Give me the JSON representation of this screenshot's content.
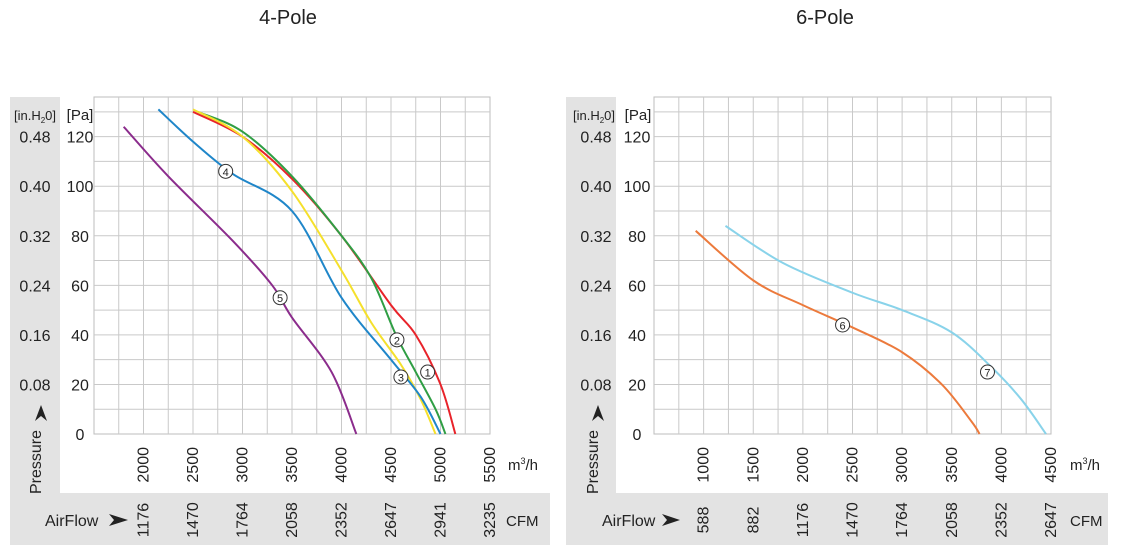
{
  "chart_data": [
    {
      "type": "line",
      "title": "4-Pole",
      "y_unit_left": "[in.H2O]",
      "y_unit_right": "[Pa]",
      "y_axis_label": "Pressure",
      "x_unit": "m³/h",
      "cfm_label": "AirFlow",
      "cfm_unit": "CFM",
      "xlim": [
        1500,
        5500
      ],
      "ylim": [
        0,
        136
      ],
      "x_ticks": [
        "2000",
        "2500",
        "3000",
        "3500",
        "4000",
        "4500",
        "5000",
        "5500"
      ],
      "x_tick_values": [
        2000,
        2500,
        3000,
        3500,
        4000,
        4500,
        5000,
        5500
      ],
      "cfm_ticks": [
        "1176",
        "1470",
        "1764",
        "2058",
        "2352",
        "2647",
        "2941",
        "3235"
      ],
      "y_ticks_pa": [
        "0",
        "20",
        "40",
        "60",
        "80",
        "100",
        "120"
      ],
      "y_tick_values": [
        0,
        20,
        40,
        60,
        80,
        100,
        120
      ],
      "y_ticks_inh2o": [
        "",
        "0.08",
        "0.16",
        "0.24",
        "0.32",
        "0.40",
        "0.48"
      ],
      "grid": true,
      "series": [
        {
          "name": "1",
          "color": "#e8232a",
          "x": [
            2500,
            3000,
            3500,
            4000,
            4500,
            4750,
            5000,
            5150
          ],
          "y": [
            130,
            120,
            103,
            80,
            52,
            40,
            20,
            0
          ]
        },
        {
          "name": "2",
          "color": "#2f9e44",
          "x": [
            2550,
            3000,
            3500,
            4000,
            4300,
            4550,
            4750,
            4950,
            5050
          ],
          "y": [
            130,
            122,
            104,
            80,
            63,
            40,
            25,
            10,
            0
          ]
        },
        {
          "name": "3",
          "color": "#f5e02c",
          "x": [
            2500,
            3000,
            3500,
            4000,
            4300,
            4600,
            4800,
            4950
          ],
          "y": [
            131,
            120,
            98,
            66,
            45,
            28,
            14,
            0
          ]
        },
        {
          "name": "4",
          "color": "#1f86c9",
          "x": [
            2150,
            2500,
            2900,
            3500,
            4000,
            4500,
            4800,
            5000
          ],
          "y": [
            131,
            118,
            105,
            90,
            55,
            30,
            15,
            0
          ]
        },
        {
          "name": "5",
          "color": "#8b2c8c",
          "x": [
            1800,
            2250,
            2900,
            3300,
            3500,
            3900,
            4150
          ],
          "y": [
            124,
            104,
            78,
            60,
            47,
            25,
            0
          ]
        }
      ],
      "labels": [
        {
          "text": "1",
          "x": 4870,
          "y": 25
        },
        {
          "text": "2",
          "x": 4560,
          "y": 38
        },
        {
          "text": "3",
          "x": 4600,
          "y": 23
        },
        {
          "text": "4",
          "x": 2830,
          "y": 106
        },
        {
          "text": "5",
          "x": 3380,
          "y": 55
        }
      ]
    },
    {
      "type": "line",
      "title": "6-Pole",
      "y_unit_left": "[in.H2O]",
      "y_unit_right": "[Pa]",
      "y_axis_label": "Pressure",
      "x_unit": "m³/h",
      "cfm_label": "AirFlow",
      "cfm_unit": "CFM",
      "xlim": [
        500,
        4500
      ],
      "ylim": [
        0,
        136
      ],
      "x_ticks": [
        "1000",
        "1500",
        "2000",
        "2500",
        "3000",
        "3500",
        "4000",
        "4500"
      ],
      "x_tick_values": [
        1000,
        1500,
        2000,
        2500,
        3000,
        3500,
        4000,
        4500
      ],
      "cfm_ticks": [
        "588",
        "882",
        "1176",
        "1470",
        "1764",
        "2058",
        "2352",
        "2647"
      ],
      "y_ticks_pa": [
        "0",
        "20",
        "40",
        "60",
        "80",
        "100",
        "120"
      ],
      "y_tick_values": [
        0,
        20,
        40,
        60,
        80,
        100,
        120
      ],
      "y_ticks_inh2o": [
        "",
        "0.08",
        "0.16",
        "0.24",
        "0.32",
        "0.40",
        "0.48"
      ],
      "grid": true,
      "series": [
        {
          "name": "6",
          "color": "#ec7a3c",
          "x": [
            920,
            1500,
            2000,
            2500,
            3000,
            3400,
            3700,
            3780
          ],
          "y": [
            82,
            62,
            52,
            43,
            33,
            20,
            5,
            0
          ]
        },
        {
          "name": "7",
          "color": "#89d3ea",
          "x": [
            1220,
            1800,
            2500,
            3000,
            3500,
            3900,
            4200,
            4450
          ],
          "y": [
            84,
            69,
            57,
            50,
            41,
            27,
            14,
            0
          ]
        }
      ],
      "labels": [
        {
          "text": "6",
          "x": 2400,
          "y": 44
        },
        {
          "text": "7",
          "x": 3860,
          "y": 25
        }
      ]
    }
  ]
}
